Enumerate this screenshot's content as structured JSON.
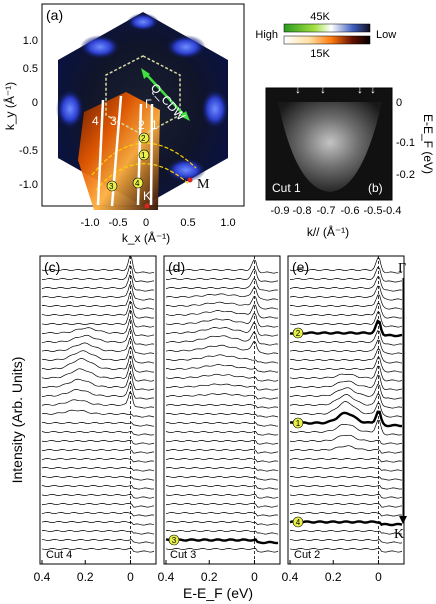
{
  "panel_a": {
    "label": "(a)",
    "xlabel": "k_x (Å⁻¹)",
    "ylabel": "k_y (Å⁻¹)",
    "xticks": [
      "-1.0",
      "-0.5",
      "0",
      "0.5",
      "1.0"
    ],
    "yticks": [
      "1.0",
      "0.5",
      "0",
      "-0.5",
      "-1.0"
    ],
    "points": {
      "gamma": "Γ",
      "k": "K",
      "m": "M"
    },
    "qcdw": "Q_CDW",
    "cut_numbers": [
      "4",
      "3",
      "2",
      "1"
    ],
    "circle_markers": [
      "2",
      "1",
      "3",
      "4"
    ]
  },
  "colorbar": {
    "top_label": "45K",
    "bottom_label": "15K",
    "high": "High",
    "low": "Low"
  },
  "panel_b": {
    "label": "(b)",
    "cut_label": "Cut 1",
    "xlabel": "k// (Å⁻¹)",
    "ylabel": "E-E_F (eV)",
    "xticks": [
      "-0.9",
      "-0.8",
      "-0.7",
      "-0.6",
      "-0.5",
      "-0.4"
    ],
    "yticks": [
      "0",
      "-0.1",
      "-0.2"
    ]
  },
  "edc_panels": [
    {
      "label": "(c)",
      "cut": "Cut 4",
      "xticks": [
        "0.4",
        "0.2",
        "0"
      ]
    },
    {
      "label": "(d)",
      "cut": "Cut 3",
      "xticks": [
        "0.4",
        "0.2",
        "0"
      ]
    },
    {
      "label": "(e)",
      "cut": "Cut 2",
      "xticks": [
        "0.4",
        "0.2",
        "0"
      ]
    }
  ],
  "edc_axes": {
    "xlabel": "E-E_F (eV)",
    "ylabel": "Intensity  (Arb. Units)",
    "gamma": "Γ",
    "k": "K"
  },
  "chart_data": {
    "type": "line",
    "x_unit": "binding energy E-E_F (eV)",
    "xlim": [
      0.4,
      -0.1
    ],
    "panel_e_markers": [
      {
        "label": "2",
        "curve_index": 7
      },
      {
        "label": "1",
        "curve_index": 17
      },
      {
        "label": "4",
        "curve_index": 28
      }
    ],
    "panel_d_markers": [
      {
        "label": "3",
        "curve_index": 30
      }
    ],
    "colors": {
      "yellow_marker": "#e8f04a",
      "cut_white": "#ffffff",
      "red_point": "#dd2222"
    }
  }
}
